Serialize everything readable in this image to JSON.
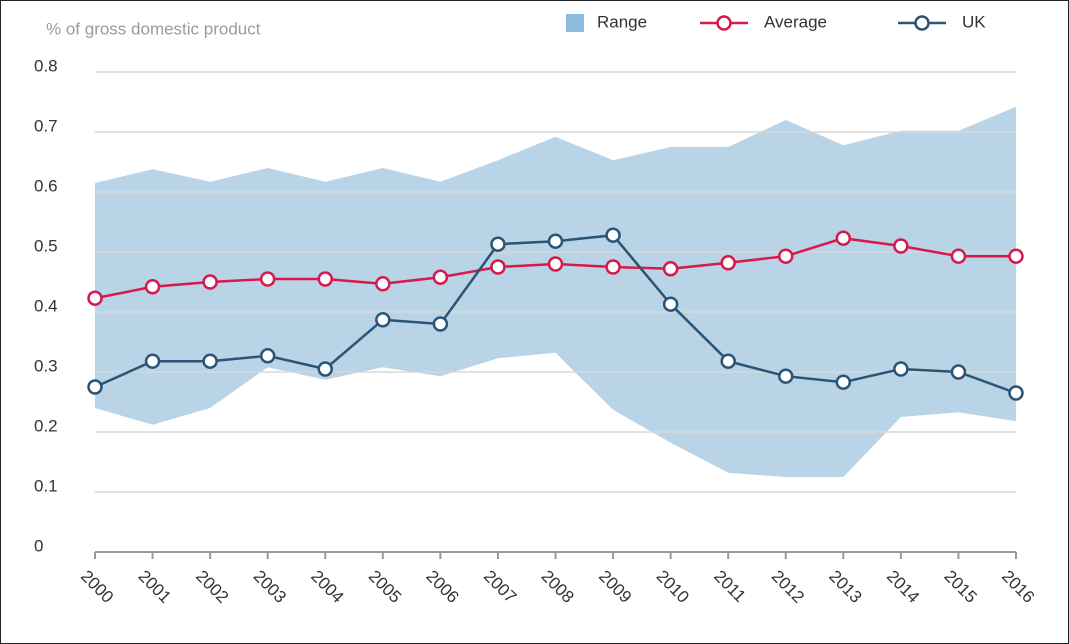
{
  "chart_data": {
    "type": "line",
    "y_label": "% of gross domestic product",
    "categories": [
      "2000",
      "2001",
      "2002",
      "2003",
      "2004",
      "2005",
      "2006",
      "2007",
      "2008",
      "2009",
      "2010",
      "2011",
      "2012",
      "2013",
      "2014",
      "2015",
      "2016"
    ],
    "range": {
      "name": "Range",
      "color": "#b9d4e7",
      "lower": [
        0.24,
        0.212,
        0.24,
        0.308,
        0.287,
        0.308,
        0.293,
        0.323,
        0.332,
        0.237,
        0.182,
        0.132,
        0.125,
        0.125,
        0.225,
        0.233,
        0.218
      ],
      "upper": [
        0.615,
        0.638,
        0.617,
        0.64,
        0.617,
        0.64,
        0.617,
        0.653,
        0.692,
        0.653,
        0.675,
        0.675,
        0.72,
        0.678,
        0.702,
        0.702,
        0.742
      ]
    },
    "series": [
      {
        "name": "Average",
        "color": "#d7194b",
        "values": [
          0.423,
          0.442,
          0.45,
          0.455,
          0.455,
          0.447,
          0.458,
          0.475,
          0.48,
          0.475,
          0.472,
          0.482,
          0.493,
          0.523,
          0.51,
          0.493,
          0.493
        ]
      },
      {
        "name": "UK",
        "color": "#2b5476",
        "values": [
          0.275,
          0.318,
          0.318,
          0.327,
          0.305,
          0.387,
          0.38,
          0.513,
          0.518,
          0.528,
          0.413,
          0.318,
          0.293,
          0.283,
          0.305,
          0.3,
          0.265
        ]
      }
    ],
    "ylim": [
      0,
      0.8
    ],
    "yticks": [
      0,
      0.1,
      0.2,
      0.3,
      0.4,
      0.5,
      0.6,
      0.7,
      0.8
    ],
    "grid": true
  }
}
